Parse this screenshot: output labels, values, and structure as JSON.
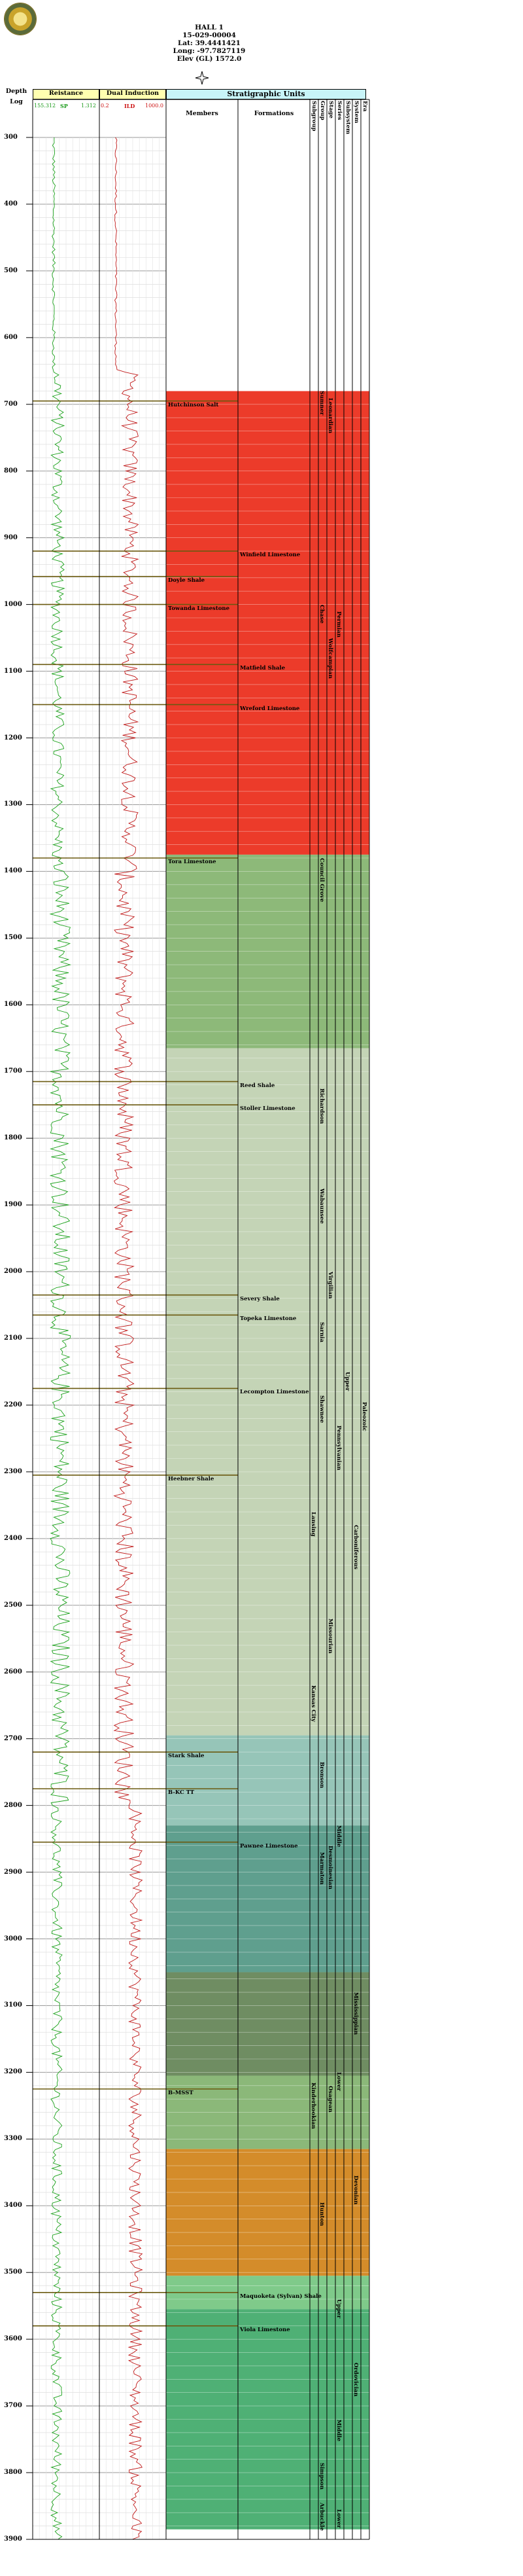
{
  "header": {
    "well_name": "HALL 1",
    "api": "15-029-00004",
    "lat": "Lat: 39.4441421",
    "long": "Long: -97.7827119",
    "elev": "Elev (GL) 1572.0"
  },
  "columns": {
    "depth": "Depth",
    "log": "Log",
    "resistance": "Reistance",
    "dual_induction": "Dual Induction",
    "strat_units": "Stratigraphic Units",
    "members": "Members",
    "formations": "Formations",
    "narrow": [
      "Subgroup",
      "Group",
      "Stage",
      "Series",
      "Subsystem",
      "System",
      "Era"
    ]
  },
  "scales": {
    "resist_left": "155.312",
    "resist_mid": "SP",
    "resist_right": "1.312",
    "ind_left": "0.2",
    "ind_mid": "ILD",
    "ind_right": "1000.0"
  },
  "depth_range": [
    300,
    3900
  ],
  "depth_ticks": [
    300,
    400,
    500,
    600,
    700,
    800,
    900,
    1000,
    1100,
    1200,
    1300,
    1400,
    1500,
    1600,
    1700,
    1800,
    1900,
    2000,
    2100,
    2200,
    2300,
    2400,
    2500,
    2600,
    2700,
    2800,
    2900,
    3000,
    3100,
    3200,
    3300,
    3400,
    3500,
    3600,
    3700,
    3800,
    3900
  ],
  "depth_tick_labels": [
    "300",
    "400",
    "500",
    "600",
    "700",
    "800",
    "900",
    "1000",
    "1100",
    "1200",
    "1300",
    "1400",
    "1500",
    "1600",
    "1700",
    "1800",
    "1900",
    "2000",
    "2100",
    "2200",
    "2300",
    "2400",
    "2500",
    "2600",
    "2700",
    "2800",
    "2900",
    "3000",
    "3100",
    "3200",
    "3300",
    "3400",
    "3500",
    "3600",
    "3700",
    "3800",
    "3900"
  ],
  "color_bands": [
    {
      "top": 680,
      "base": 1375,
      "color": "#ec3b2a"
    },
    {
      "top": 1375,
      "base": 1665,
      "color": "#8db979"
    },
    {
      "top": 1665,
      "base": 2695,
      "color": "#c4d4b6"
    },
    {
      "top": 2695,
      "base": 2830,
      "color": "#96c5b8"
    },
    {
      "top": 2830,
      "base": 3050,
      "color": "#5f9f8e"
    },
    {
      "top": 3050,
      "base": 3205,
      "color": "#6f8d62"
    },
    {
      "top": 3205,
      "base": 3315,
      "color": "#8bb879"
    },
    {
      "top": 3315,
      "base": 3505,
      "color": "#d48c2a"
    },
    {
      "top": 3505,
      "base": 3555,
      "color": "#7fca8a"
    },
    {
      "top": 3555,
      "base": 3885,
      "color": "#4fb075"
    }
  ],
  "tops": [
    {
      "depth": 695,
      "name": "Hutchinson Salt",
      "col": "member"
    },
    {
      "depth": 920,
      "name": "Winfield Limestone",
      "col": "formation"
    },
    {
      "depth": 958,
      "name": "Doyle Shale",
      "col": "member"
    },
    {
      "depth": 1000,
      "name": "Towanda Limestone",
      "col": "member"
    },
    {
      "depth": 1090,
      "name": "Matfield Shale",
      "col": "formation"
    },
    {
      "depth": 1150,
      "name": "Wreford Limestone",
      "col": "formation"
    },
    {
      "depth": 1380,
      "name": "Tora Limestone",
      "col": "member"
    },
    {
      "depth": 1715,
      "name": "Reed Shale",
      "col": "formation"
    },
    {
      "depth": 1750,
      "name": "Stoller Limestone",
      "col": "formation"
    },
    {
      "depth": 2035,
      "name": "Severy Shale",
      "col": "formation"
    },
    {
      "depth": 2065,
      "name": "Topeka Limestone",
      "col": "formation"
    },
    {
      "depth": 2175,
      "name": "Lecompton Limestone",
      "col": "formation"
    },
    {
      "depth": 2305,
      "name": "Heebner Shale",
      "col": "member"
    },
    {
      "depth": 2720,
      "name": "Stark Shale",
      "col": "member"
    },
    {
      "depth": 2775,
      "name": "B-KC TT",
      "col": "member"
    },
    {
      "depth": 2855,
      "name": "Pawnee Limestone",
      "col": "formation"
    },
    {
      "depth": 3225,
      "name": "B-MSST",
      "col": "member"
    },
    {
      "depth": 3530,
      "name": "Maquoketa (Sylvan) Shale",
      "col": "formation"
    },
    {
      "depth": 3580,
      "name": "Viola Limestone",
      "col": "formation"
    }
  ],
  "subgroups": [
    {
      "top": 2360,
      "base": 2460,
      "name": "Lansing"
    },
    {
      "top": 2620,
      "base": 2700,
      "name": "Kansas City"
    },
    {
      "top": 3215,
      "base": 3285,
      "name": "Kinderhookian"
    }
  ],
  "groups": [
    {
      "top": 680,
      "base": 750,
      "name": "Sumner"
    },
    {
      "top": 1000,
      "base": 1080,
      "name": "Chase"
    },
    {
      "top": 1380,
      "base": 1445,
      "name": "Council Grove"
    },
    {
      "top": 1725,
      "base": 1795,
      "name": "Richardson"
    },
    {
      "top": 1875,
      "base": 1955,
      "name": "Wabaunsee"
    },
    {
      "top": 2075,
      "base": 2125,
      "name": "Sarnia"
    },
    {
      "top": 2185,
      "base": 2255,
      "name": "Shawnee"
    },
    {
      "top": 2735,
      "base": 2790,
      "name": "Bronson"
    },
    {
      "top": 2870,
      "base": 2920,
      "name": "Marmaton"
    },
    {
      "top": 3395,
      "base": 3460,
      "name": "Hunton"
    },
    {
      "top": 3785,
      "base": 3855,
      "name": "Simpson"
    },
    {
      "top": 3845,
      "base": 3885,
      "name": "Arbuckle"
    }
  ],
  "stages": [
    {
      "top": 690,
      "base": 760,
      "name": "Leonardian"
    },
    {
      "top": 1050,
      "base": 1150,
      "name": "Wolfcampian"
    },
    {
      "top": 2000,
      "base": 2080,
      "name": "Virgilian"
    },
    {
      "top": 2520,
      "base": 2620,
      "name": "Missourian"
    },
    {
      "top": 2860,
      "base": 2920,
      "name": "Desmoinesian"
    },
    {
      "top": 3220,
      "base": 3270,
      "name": "Osagean"
    }
  ],
  "series": [
    {
      "top": 1010,
      "base": 1080,
      "name": "Permian"
    },
    {
      "top": 2230,
      "base": 2330,
      "name": "Pennsylvanian"
    },
    {
      "top": 2830,
      "base": 2880,
      "name": "Middle"
    },
    {
      "top": 3200,
      "base": 3240,
      "name": "Lower"
    },
    {
      "top": 3540,
      "base": 3580,
      "name": "Upper"
    },
    {
      "top": 3720,
      "base": 3770,
      "name": "Middle"
    },
    {
      "top": 3855,
      "base": 3890,
      "name": "Lower"
    }
  ],
  "subsystems": [
    {
      "top": 2150,
      "base": 2230,
      "name": "Upper"
    }
  ],
  "systems": [
    {
      "top": 2380,
      "base": 2480,
      "name": "Carboniferous"
    },
    {
      "top": 3080,
      "base": 3160,
      "name": "Mississippian"
    },
    {
      "top": 3355,
      "base": 3425,
      "name": "Devonian"
    },
    {
      "top": 3635,
      "base": 3705,
      "name": "Ordovician"
    }
  ],
  "eras": [
    {
      "top": 2195,
      "base": 2290,
      "name": "Paleozoic"
    }
  ]
}
